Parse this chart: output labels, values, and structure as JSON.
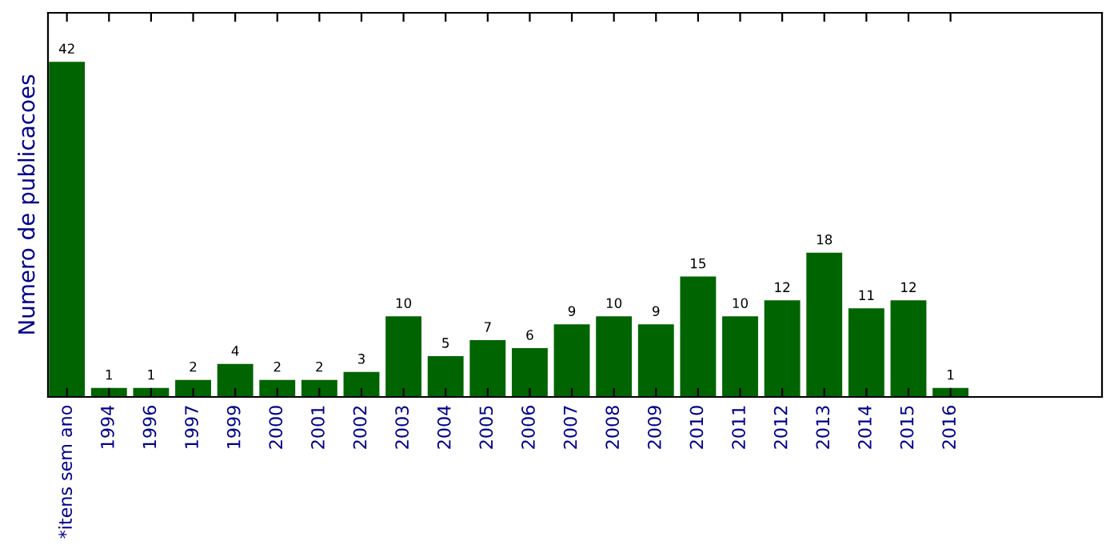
{
  "chart_data": {
    "type": "bar",
    "ylabel": "Numero de publicacoes",
    "categories": [
      "*itens sem ano",
      "1994",
      "1996",
      "1997",
      "1999",
      "2000",
      "2001",
      "2002",
      "2003",
      "2004",
      "2005",
      "2006",
      "2007",
      "2008",
      "2009",
      "2010",
      "2011",
      "2012",
      "2013",
      "2014",
      "2015",
      "2016"
    ],
    "values": [
      42,
      1,
      1,
      2,
      4,
      2,
      2,
      3,
      10,
      5,
      7,
      6,
      9,
      10,
      9,
      15,
      10,
      12,
      18,
      11,
      12,
      1
    ],
    "color": "#006400",
    "data_labels": true,
    "tick_labels": "x",
    "grid": false
  }
}
